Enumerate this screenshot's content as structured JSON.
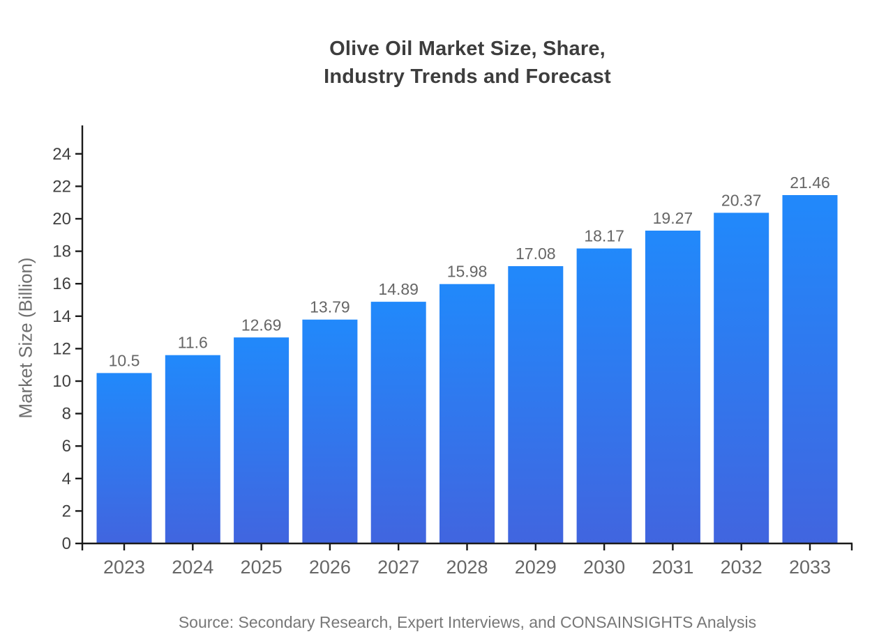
{
  "chart_data": {
    "type": "bar",
    "title": "Olive Oil Market Size, Share, Industry Trends and Forecast",
    "title_lines": [
      "Olive Oil Market Size, Share,",
      "Industry Trends and Forecast"
    ],
    "categories": [
      "2023",
      "2024",
      "2025",
      "2026",
      "2027",
      "2028",
      "2029",
      "2030",
      "2031",
      "2032",
      "2033"
    ],
    "values": [
      10.5,
      11.6,
      12.69,
      13.79,
      14.89,
      15.98,
      17.08,
      18.17,
      19.27,
      20.37,
      21.46
    ],
    "xlabel": "",
    "ylabel": "Market Size (Billion)",
    "ylim": [
      0,
      24
    ],
    "yticks": [
      0,
      2,
      4,
      6,
      8,
      10,
      12,
      14,
      16,
      18,
      20,
      22,
      24
    ],
    "grid": false,
    "legend": null,
    "source": "Source: Secondary Research, Expert Interviews, and CONSAINSIGHTS Analysis",
    "colors": {
      "bar_gradient_top": "#2189FB",
      "bar_gradient_bottom": "#4165DF",
      "axis": "#1a1a1a",
      "y_tick_label": "#414141",
      "category_label": "#666666",
      "value_label": "#666666",
      "title": "#3d3d3d",
      "ylabel": "#6e6e6e",
      "source": "#777777",
      "background": "#ffffff"
    }
  }
}
